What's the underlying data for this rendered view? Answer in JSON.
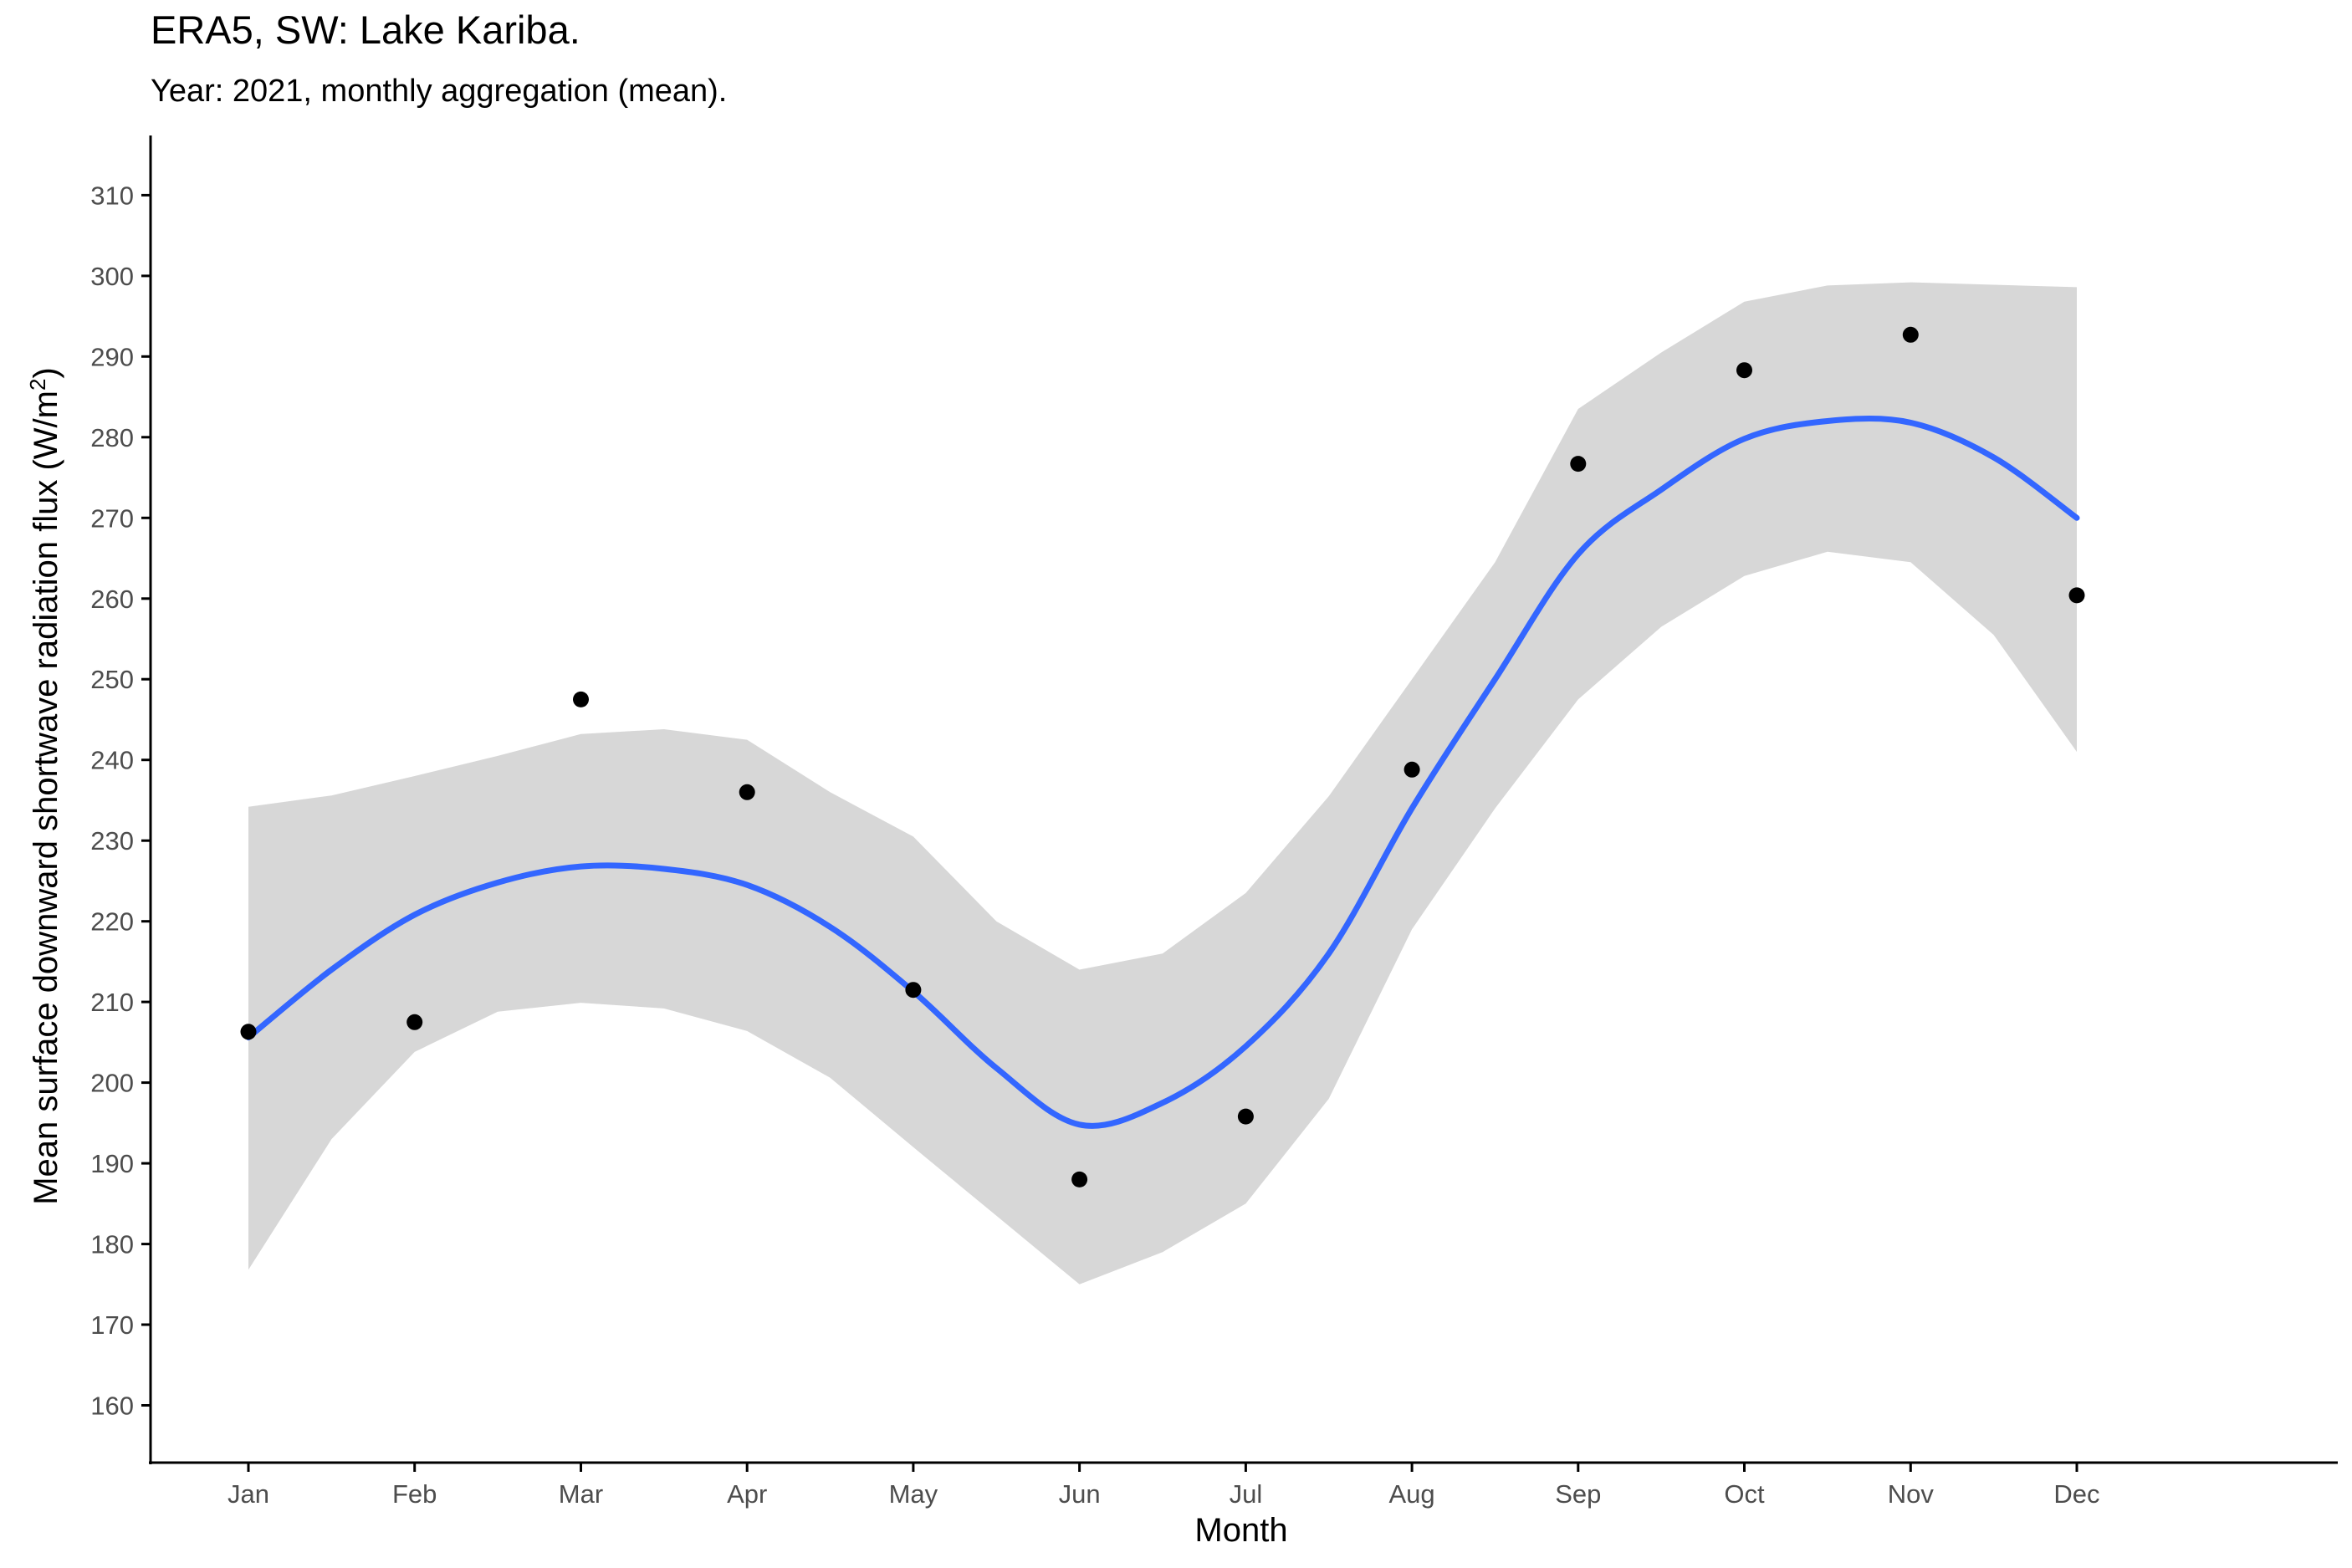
{
  "chart_data": {
    "type": "scatter",
    "title": "ERA5, SW: Lake Kariba.",
    "subtitle": "Year: 2021, monthly aggregation (mean).",
    "xlabel": "Month",
    "ylabel_main": "Mean surface downward shortwave radiation flux (W/m",
    "ylabel_sup": "2",
    "ylabel_end": ")",
    "categories": [
      "Jan",
      "Feb",
      "Mar",
      "Apr",
      "May",
      "Jun",
      "Jul",
      "Aug",
      "Sep",
      "Oct",
      "Nov",
      "Dec"
    ],
    "yticks": [
      160,
      170,
      180,
      190,
      200,
      210,
      220,
      230,
      240,
      250,
      260,
      270,
      280,
      290,
      300,
      310
    ],
    "ylim": [
      152.9,
      317.4
    ],
    "grid": false,
    "legend": "none",
    "series": [
      {
        "kind": "points",
        "values": [
          206.3,
          207.5,
          247.5,
          236.0,
          211.5,
          188.0,
          195.8,
          238.8,
          276.7,
          288.3,
          292.7,
          260.4
        ]
      },
      {
        "kind": "smooth",
        "x": [
          1.0,
          1.5,
          2.0,
          2.5,
          3.0,
          3.5,
          4.0,
          4.5,
          5.0,
          5.5,
          6.0,
          6.5,
          7.0,
          7.5,
          8.0,
          8.5,
          9.0,
          9.5,
          10.0,
          10.5,
          11.0,
          11.5,
          12.0
        ],
        "values": [
          205.6,
          214.0,
          220.8,
          224.8,
          226.8,
          226.5,
          224.5,
          219.3,
          211.3,
          201.8,
          194.8,
          197.5,
          204.5,
          216.0,
          234.0,
          250.0,
          265.5,
          273.5,
          279.8,
          282.0,
          281.8,
          277.5,
          270.0
        ],
        "lower": [
          176.8,
          193.0,
          203.8,
          208.8,
          209.9,
          209.2,
          206.4,
          200.6,
          192.0,
          183.5,
          175.0,
          179.0,
          185.0,
          198.0,
          219.0,
          234.0,
          247.5,
          256.5,
          262.8,
          265.8,
          264.5,
          255.5,
          241.0
        ],
        "upper": [
          234.2,
          235.6,
          238.0,
          240.5,
          243.2,
          243.8,
          242.5,
          236.0,
          230.5,
          220.0,
          214.0,
          216.0,
          223.5,
          235.5,
          250.0,
          264.5,
          283.5,
          290.5,
          296.8,
          298.8,
          299.2,
          298.9,
          298.6
        ]
      }
    ],
    "colors": {
      "points": "#000000",
      "line": "#3366FF",
      "ribbon": "#d7d7d7",
      "axis": "#000000",
      "tick_text": "#4d4d4d"
    }
  }
}
